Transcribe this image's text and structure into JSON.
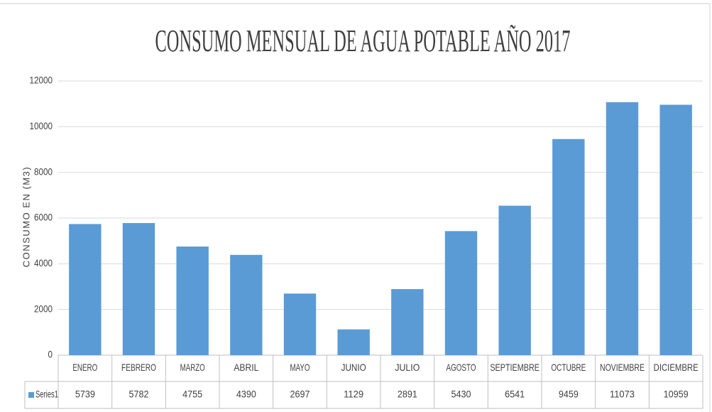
{
  "chart_data": {
    "type": "bar",
    "title": "CONSUMO MENSUAL DE AGUA POTABLE AÑO 2017",
    "y_label": "CONSUMO EN (M3)",
    "categories": [
      "ENERO",
      "FEBRERO",
      "MARZO",
      "ABRIL",
      "MAYO",
      "JUNIO",
      "JULIO",
      "AGOSTO",
      "SEPTIEMBRE",
      "OCTUBRE",
      "NOVIEMBRE",
      "DICIEMBRE"
    ],
    "series": [
      {
        "name": "Series1",
        "color": "#5b9bd5",
        "values": [
          5739,
          5782,
          4755,
          4390,
          2697,
          1129,
          2891,
          5430,
          6541,
          9459,
          11073,
          10959
        ]
      }
    ],
    "ylim": [
      0,
      12000
    ],
    "yticks": [
      0,
      2000,
      4000,
      6000,
      8000,
      10000,
      12000
    ],
    "grid": true,
    "data_table": true
  }
}
